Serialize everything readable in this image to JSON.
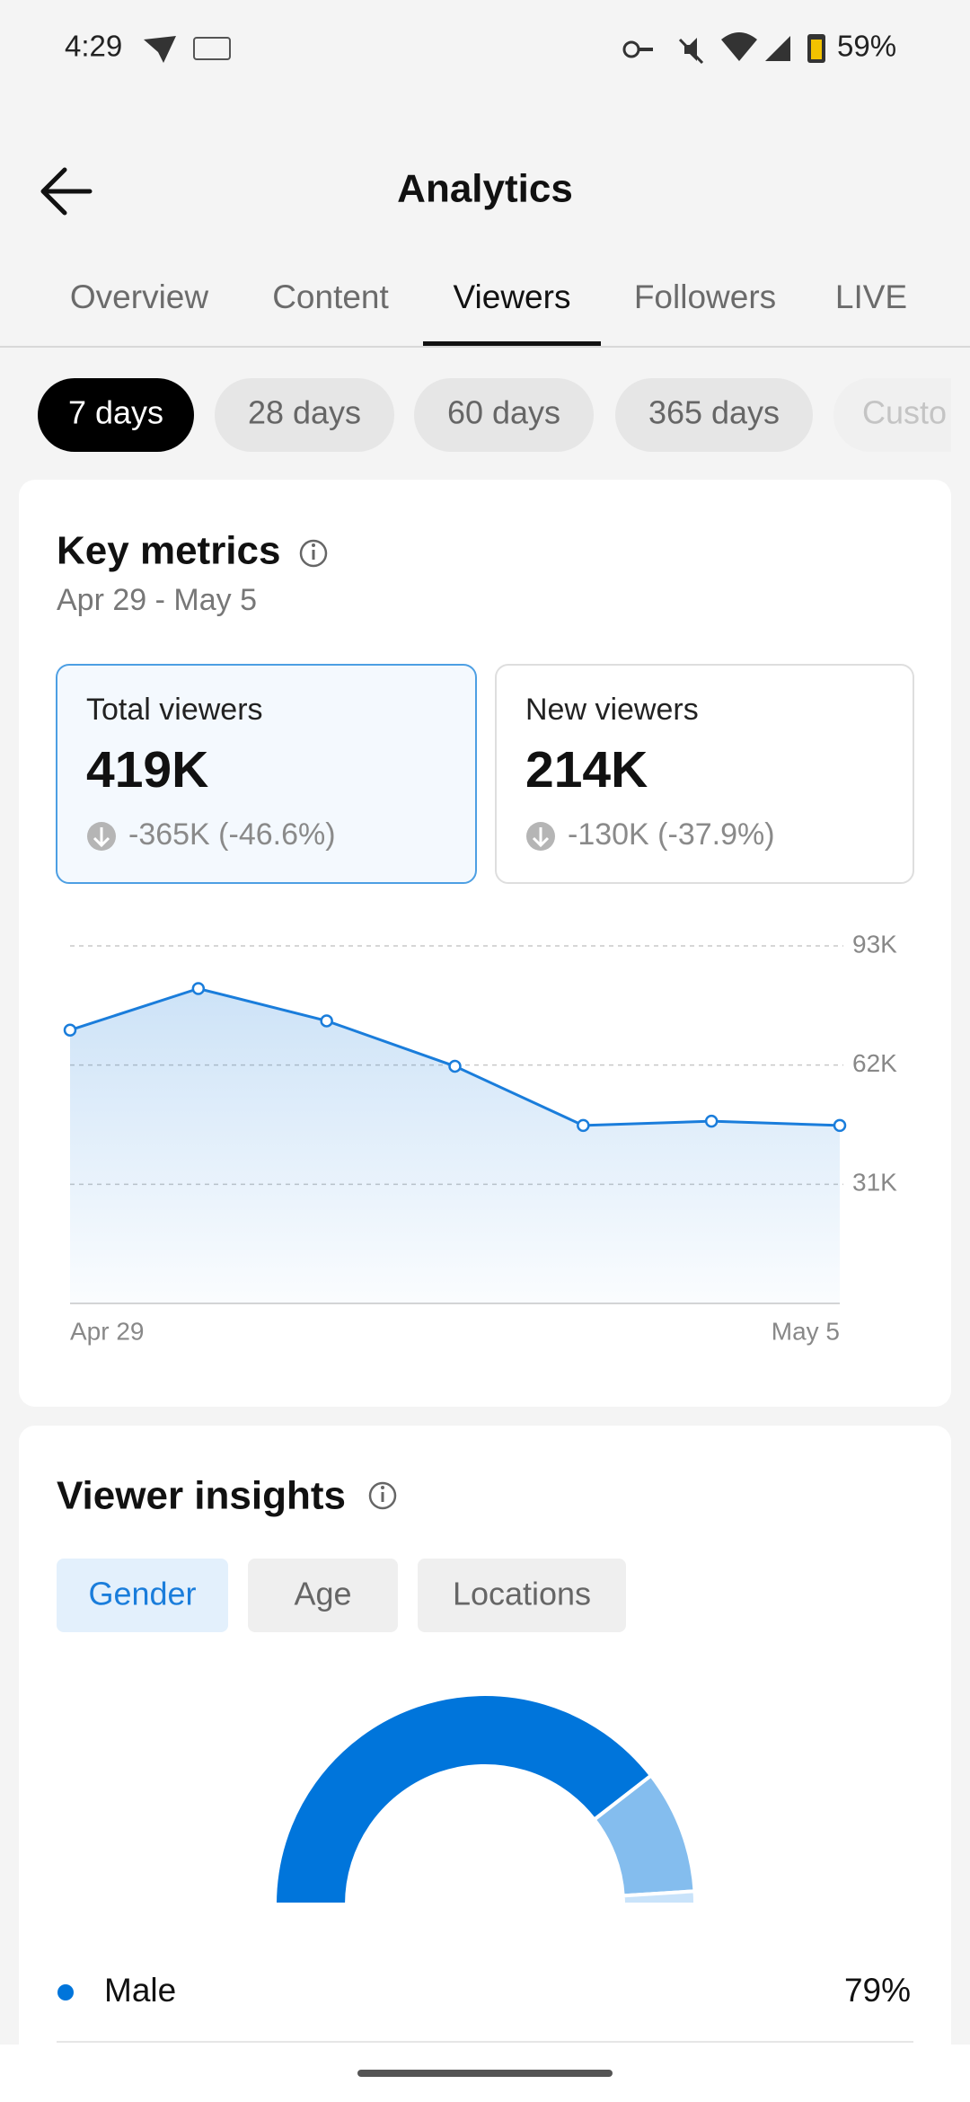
{
  "status_bar": {
    "time": "4:29",
    "battery": "59%"
  },
  "header": {
    "title": "Analytics"
  },
  "tabs": {
    "items": [
      "Overview",
      "Content",
      "Viewers",
      "Followers",
      "LIVE"
    ],
    "selected": 2
  },
  "periods": {
    "items": [
      "7 days",
      "28 days",
      "60 days",
      "365 days",
      "Custo"
    ],
    "selected": 0
  },
  "key_metrics": {
    "title": "Key metrics",
    "date_range": "Apr 29 - May 5",
    "cards": [
      {
        "label": "Total viewers",
        "value": "419K",
        "change": "-365K (-46.6%)"
      },
      {
        "label": "New viewers",
        "value": "214K",
        "change": "-130K (-37.9%)"
      }
    ],
    "selected_card": 0,
    "chart": {
      "type": "line",
      "categories": [
        "Apr 29",
        null,
        null,
        null,
        null,
        null,
        "May 5"
      ],
      "values": [
        71100,
        81900,
        73500,
        61700,
        46300,
        47400,
        46300
      ],
      "color": "#1a7ddb",
      "ylim": [
        0,
        93000
      ],
      "yticks": [
        {
          "value": 31000,
          "label": "31K"
        },
        {
          "value": 62000,
          "label": "62K"
        },
        {
          "value": 93000,
          "label": "93K"
        }
      ],
      "grid": true
    }
  },
  "viewer_insights": {
    "title": "Viewer insights",
    "filters": [
      "Gender",
      "Age",
      "Locations"
    ],
    "selected": 0,
    "chart": {
      "type": "pie",
      "values": [
        79,
        19,
        2
      ],
      "labels": [
        "Male",
        null,
        null
      ],
      "value_labels": [
        "79%",
        null,
        null
      ],
      "colors": [
        "#0075db",
        "#84bdee",
        "#c9e3fa"
      ]
    }
  }
}
